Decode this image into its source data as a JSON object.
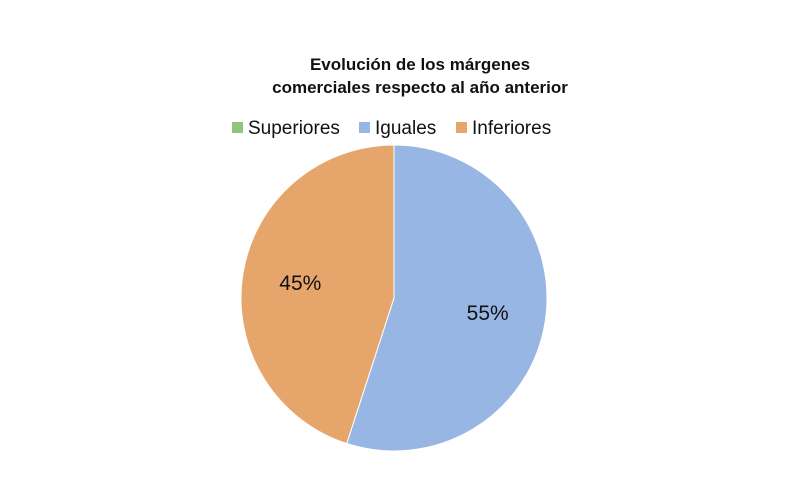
{
  "chart_data": {
    "type": "pie",
    "title": "Evolución de los márgenes comerciales respecto al año anterior",
    "title_lines": [
      "Evolución de los márgenes",
      "comerciales respecto al año anterior"
    ],
    "legend_position": "top",
    "slices": [
      {
        "name": "Superiores",
        "value": 0,
        "color": "#92c47a",
        "label": ""
      },
      {
        "name": "Iguales",
        "value": 55,
        "color": "#98b6e4",
        "label": "55%"
      },
      {
        "name": "Inferiores",
        "value": 45,
        "color": "#e6a66b",
        "label": "45%"
      }
    ]
  }
}
